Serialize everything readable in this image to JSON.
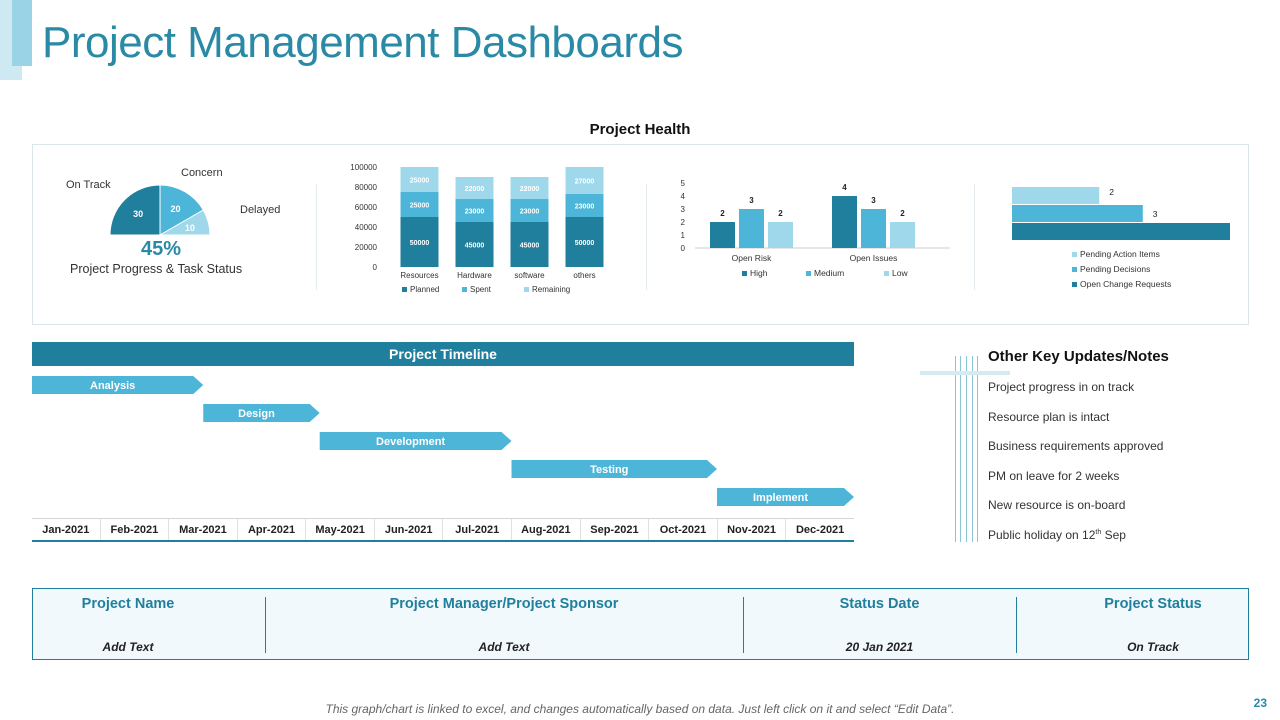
{
  "title": "Project Management Dashboards",
  "health": {
    "title": "Project Health",
    "progress": {
      "on_track_label": "On Track",
      "concern_label": "Concern",
      "delayed_label": "Delayed",
      "percent": "45%",
      "caption": "Project Progress & Task Status"
    }
  },
  "colors": {
    "dark": "#1f7f9c",
    "mid": "#4db6d8",
    "light": "#a0d8eb"
  },
  "chart_data": [
    {
      "type": "pie",
      "variant": "semicircle",
      "categories": [
        "On Track",
        "Concern",
        "Delayed"
      ],
      "values": [
        30,
        20,
        10
      ]
    },
    {
      "type": "bar",
      "stacked": true,
      "categories": [
        "Resources",
        "Hardware",
        "software",
        "others"
      ],
      "series": [
        {
          "name": "Planned",
          "values": [
            50000,
            45000,
            45000,
            50000
          ]
        },
        {
          "name": "Spent",
          "values": [
            25000,
            23000,
            23000,
            23000
          ]
        },
        {
          "name": "Remaining",
          "values": [
            25000,
            22000,
            22000,
            27000
          ]
        }
      ],
      "yticks": [
        "0",
        "20000",
        "40000",
        "60000",
        "80000",
        "100000"
      ],
      "ylim": [
        0,
        100000
      ],
      "legend": "bottom"
    },
    {
      "type": "bar",
      "categories": [
        "Open Risk",
        "Open Issues"
      ],
      "series": [
        {
          "name": "High",
          "values": [
            2,
            4
          ]
        },
        {
          "name": "Medium",
          "values": [
            3,
            3
          ]
        },
        {
          "name": "Low",
          "values": [
            2,
            2
          ]
        }
      ],
      "yticks": [
        "0",
        "1",
        "2",
        "3",
        "4",
        "5"
      ],
      "ylim": [
        0,
        5
      ],
      "legend": "bottom"
    },
    {
      "type": "bar",
      "orientation": "horizontal",
      "series": [
        {
          "name": "Pending Action Items",
          "value": 2
        },
        {
          "name": "Pending Decisions",
          "value": 3
        },
        {
          "name": "Open Change Requests",
          "value": 5
        }
      ],
      "xlim": [
        0,
        5
      ],
      "legend": "bottom"
    }
  ],
  "timeline": {
    "title": "Project Timeline",
    "phases": [
      {
        "label": "Analysis",
        "start": 0,
        "end": 2.5
      },
      {
        "label": "Design",
        "start": 2.5,
        "end": 4.2
      },
      {
        "label": "Development",
        "start": 4.2,
        "end": 7
      },
      {
        "label": "Testing",
        "start": 7,
        "end": 10
      },
      {
        "label": "Implement",
        "start": 10,
        "end": 12
      }
    ],
    "months": [
      "Jan-2021",
      "Feb-2021",
      "Mar-2021",
      "Apr-2021",
      "May-2021",
      "Jun-2021",
      "Jul-2021",
      "Aug-2021",
      "Sep-2021",
      "Oct-2021",
      "Nov-2021",
      "Dec-2021"
    ]
  },
  "notes": {
    "title": "Other Key Updates/Notes",
    "items": [
      "Project progress in on track",
      "Resource plan is intact",
      "Business requirements approved",
      "PM on leave for 2 weeks",
      "New resource is on-board"
    ],
    "holiday_prefix": "Public holiday on 12",
    "holiday_sup": "th",
    "holiday_suffix": " Sep"
  },
  "info": {
    "project_name_label": "Project Name",
    "project_name_value": "Add Text",
    "manager_label": "Project Manager/Project Sponsor",
    "manager_value": "Add Text",
    "status_date_label": "Status Date",
    "status_date_value": "20 Jan 2021",
    "status_label": "Project Status",
    "status_value": "On Track"
  },
  "footer": "This graph/chart is linked to excel, and changes automatically  based on data. Just left click on it and select “Edit Data”.",
  "page_number": "23"
}
